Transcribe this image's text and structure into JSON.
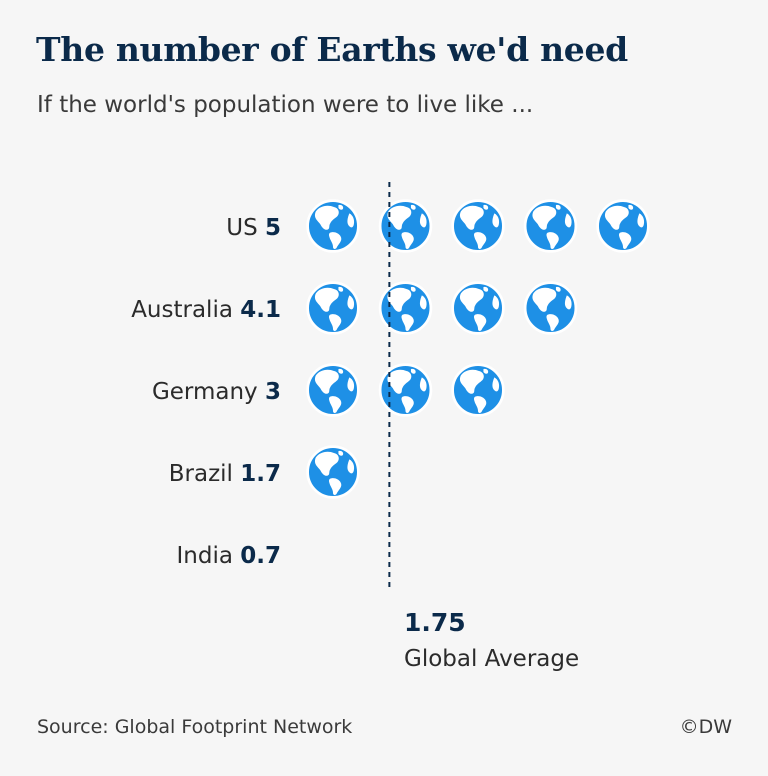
{
  "title": "The number of Earths we'd need",
  "subtitle": "If the world's population were to live like ...",
  "source": "Source: Global Footprint Network",
  "credit": "©DW",
  "colors": {
    "globe_fill": "#1e90e6",
    "globe_land": "#ffffff",
    "label_text": "#2b2b2b",
    "value_text": "#0b2a4a",
    "average_line": "#0b2a4a"
  },
  "chart_data": {
    "type": "pictogram",
    "unit_icon": "globe-icon",
    "categories": [
      "US",
      "Australia",
      "Germany",
      "Brazil",
      "India"
    ],
    "values": [
      5,
      4.1,
      3,
      1.7,
      0.7
    ],
    "value_labels": [
      "5",
      "4.1",
      "3",
      "1.7",
      "0.7"
    ],
    "reference": {
      "value": 1.75,
      "value_label": "1.75",
      "label": "Global Average"
    }
  }
}
